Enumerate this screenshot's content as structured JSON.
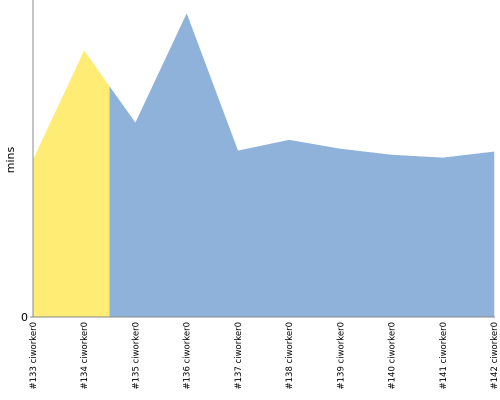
{
  "chart_data": {
    "type": "area",
    "y_label": "mins",
    "categories": [
      "#133 ciworker0",
      "#134 ciworker0",
      "#135 ciworker0",
      "#136 ciworker0",
      "#137 ciworker0",
      "#138 ciworker0",
      "#139 ciworker0",
      "#140 ciworker0",
      "#141 ciworker0",
      "#142 ciworker0"
    ],
    "values": [
      4.95,
      8.39,
      6.12,
      9.56,
      5.24,
      5.58,
      5.3,
      5.11,
      5.02,
      5.21
    ],
    "colors": [
      "#feec75",
      "#feec75",
      "#8fb2da",
      "#8fb2da",
      "#8fb2da",
      "#8fb2da",
      "#8fb2da",
      "#8fb2da",
      "#8fb2da",
      "#8fb2da"
    ],
    "ylim": [
      0,
      10
    ],
    "yticks": [
      0
    ]
  }
}
